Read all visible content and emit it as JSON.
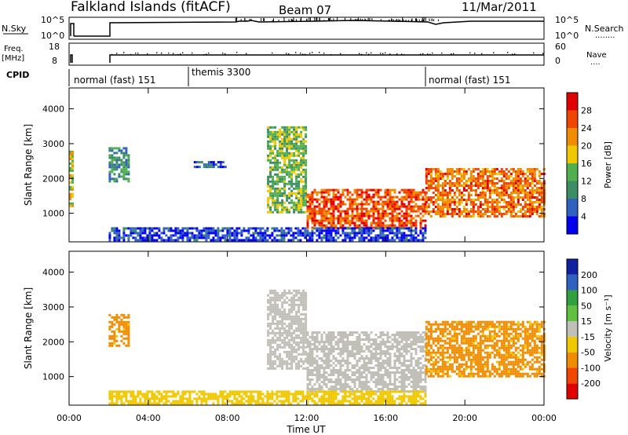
{
  "header": {
    "station": "Falkland Islands (fitACF)",
    "beam": "Beam 07",
    "date": "11/Mar/2011"
  },
  "strip_labels": {
    "nsky": "N.Sky",
    "nsearch": "N.Search",
    "nsearch_dots": "........",
    "freq_line1": "Freq.",
    "freq_line2": "[MHz]",
    "nave": "Nave",
    "nave_dots": "....",
    "cpid": "CPID"
  },
  "strip_ticks": {
    "nsky": [
      "10^5",
      "10^0"
    ],
    "nsearch": [
      "10^5",
      "10^0"
    ],
    "freq": [
      "18",
      "8"
    ],
    "nave": [
      "60",
      "0"
    ]
  },
  "cpid_segments": [
    {
      "label": "normal (fast) 151",
      "start_hour": 0,
      "end_hour": 6
    },
    {
      "label": "themis 3300",
      "start_hour": 6,
      "end_hour": 18
    },
    {
      "label": "normal (fast) 151",
      "start_hour": 18,
      "end_hour": 24
    }
  ],
  "colors": {
    "power_scale": [
      "#0000ee",
      "#3060c0",
      "#3c8c64",
      "#50b050",
      "#f0c800",
      "#f08c00",
      "#f04600",
      "#e00000"
    ],
    "velocity_scale": [
      "#e00000",
      "#f04600",
      "#f08c00",
      "#f0c800",
      "#c0c0b8",
      "#60c040",
      "#30a040",
      "#3060c0",
      "#1020a0"
    ]
  },
  "chart_data": [
    {
      "type": "heatmap",
      "panel": "power",
      "xlabel": "",
      "ylabel": "Slant Range [km]",
      "x_range_hours": [
        0,
        24
      ],
      "ylim": [
        180,
        4600
      ],
      "y_ticks": [
        "1000",
        "2000",
        "3000",
        "4000"
      ],
      "colorbar": {
        "label": "Power [dB]",
        "ticks": [
          "4",
          "8",
          "12",
          "16",
          "20",
          "24",
          "28"
        ],
        "range": [
          0,
          32
        ]
      },
      "echo_regions": [
        {
          "t_start": 0.0,
          "t_end": 0.2,
          "r_low": 1200,
          "r_high": 2800,
          "power": 18
        },
        {
          "t_start": 2.0,
          "t_end": 3.0,
          "r_low": 1900,
          "r_high": 2900,
          "power": 10
        },
        {
          "t_start": 6.3,
          "t_end": 7.9,
          "r_low": 2300,
          "r_high": 2500,
          "power": 6
        },
        {
          "t_start": 10.0,
          "t_end": 12.0,
          "r_low": 1000,
          "r_high": 3500,
          "power": 14
        },
        {
          "t_start": 12.0,
          "t_end": 18.0,
          "r_low": 600,
          "r_high": 1700,
          "power": 26
        },
        {
          "t_start": 18.0,
          "t_end": 24.0,
          "r_low": 900,
          "r_high": 2300,
          "power": 24
        },
        {
          "t_start": 2.0,
          "t_end": 18.0,
          "r_low": 200,
          "r_high": 600,
          "power": 4
        }
      ]
    },
    {
      "type": "heatmap",
      "panel": "velocity",
      "xlabel": "Time UT",
      "ylabel": "Slant Range [km]",
      "x_range_hours": [
        0,
        24
      ],
      "ylim": [
        180,
        4600
      ],
      "x_ticks": [
        "00:00",
        "04:00",
        "08:00",
        "12:00",
        "16:00",
        "20:00",
        "00:00"
      ],
      "y_ticks": [
        "1000",
        "2000",
        "3000",
        "4000"
      ],
      "colorbar": {
        "label": "Velocity [m s⁻¹]",
        "ticks": [
          "200",
          "100",
          "50",
          "15",
          "-15",
          "-50",
          "-100",
          "-200"
        ]
      },
      "echo_regions": [
        {
          "t_start": 2.0,
          "t_end": 3.0,
          "r_low": 1900,
          "r_high": 2800,
          "velocity": -60
        },
        {
          "t_start": 10.0,
          "t_end": 12.0,
          "r_low": 1200,
          "r_high": 3500,
          "velocity": 0
        },
        {
          "t_start": 12.0,
          "t_end": 18.0,
          "r_low": 600,
          "r_high": 2300,
          "velocity": 0
        },
        {
          "t_start": 18.0,
          "t_end": 24.0,
          "r_low": 1000,
          "r_high": 2600,
          "velocity": -60
        },
        {
          "t_start": 2.0,
          "t_end": 18.0,
          "r_low": 200,
          "r_high": 600,
          "velocity": -30
        }
      ]
    }
  ]
}
